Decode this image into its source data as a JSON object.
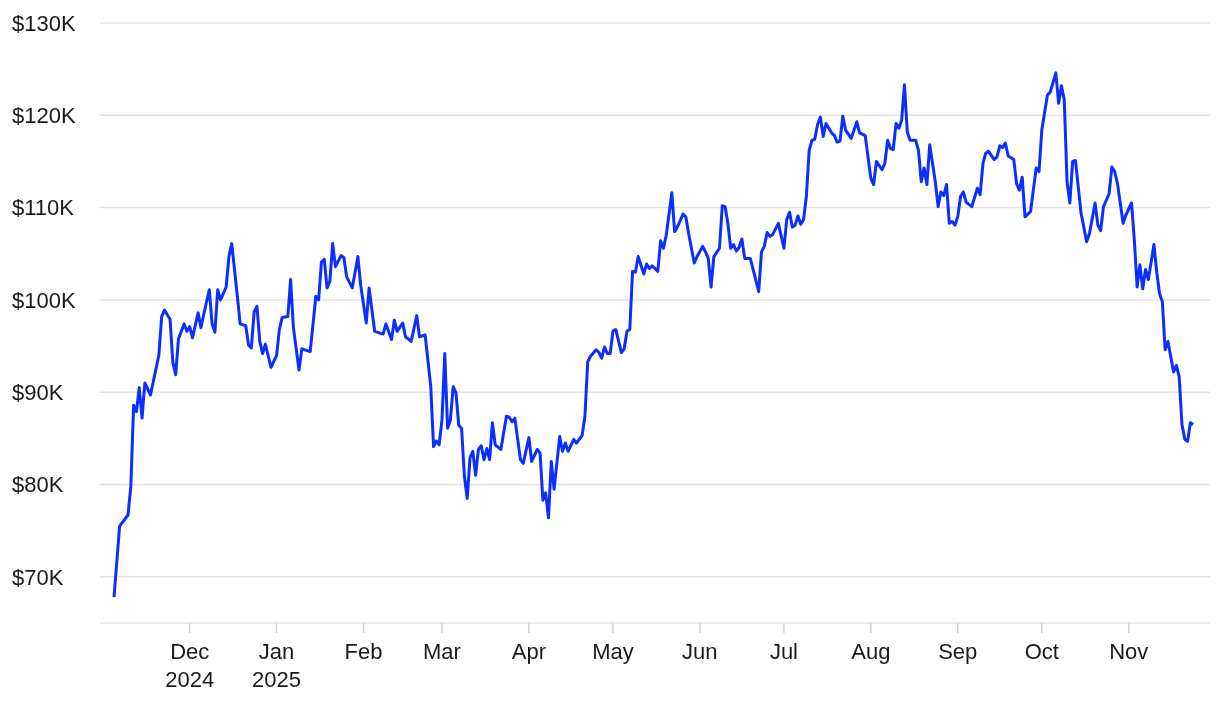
{
  "chart_data": {
    "type": "line",
    "color": "#0a2fff",
    "grid": "y",
    "line_style": "solid",
    "xlim": [
      "2024-10-30",
      "2025-11-30"
    ],
    "xticks": [
      {
        "value": "2024-12-01",
        "label": "Dec\n2024"
      },
      {
        "value": "2025-01-01",
        "label": "Jan\n2025"
      },
      {
        "value": "2025-02-01",
        "label": "Feb"
      },
      {
        "value": "2025-03-01",
        "label": "Mar"
      },
      {
        "value": "2025-04-01",
        "label": "Apr"
      },
      {
        "value": "2025-05-01",
        "label": "May"
      },
      {
        "value": "2025-06-01",
        "label": "Jun"
      },
      {
        "value": "2025-07-01",
        "label": "Jul"
      },
      {
        "value": "2025-08-01",
        "label": "Aug"
      },
      {
        "value": "2025-09-01",
        "label": "Sep"
      },
      {
        "value": "2025-10-01",
        "label": "Oct"
      },
      {
        "value": "2025-11-01",
        "label": "Nov"
      }
    ],
    "ylim": [
      65000,
      130000
    ],
    "yticks": [
      {
        "value": 70000,
        "label": "$70K"
      },
      {
        "value": 80000,
        "label": "$80K"
      },
      {
        "value": 90000,
        "label": "$90K"
      },
      {
        "value": 100000,
        "label": "$100K"
      },
      {
        "value": 110000,
        "label": "$110K"
      },
      {
        "value": 120000,
        "label": "$120K"
      },
      {
        "value": 130000,
        "label": "$130K"
      }
    ],
    "x": [
      "2024-11-04",
      "2024-11-06",
      "2024-11-09",
      "2024-11-10",
      "2024-11-11",
      "2024-11-12",
      "2024-11-13",
      "2024-11-14",
      "2024-11-15",
      "2024-11-17",
      "2024-11-20",
      "2024-11-21",
      "2024-11-22",
      "2024-11-24",
      "2024-11-25",
      "2024-11-26",
      "2024-11-27",
      "2024-11-29",
      "2024-11-30",
      "2024-12-01",
      "2024-12-02",
      "2024-12-04",
      "2024-12-05",
      "2024-12-07",
      "2024-12-08",
      "2024-12-09",
      "2024-12-10",
      "2024-12-11",
      "2024-12-12",
      "2024-12-14",
      "2024-12-15",
      "2024-12-16",
      "2024-12-18",
      "2024-12-19",
      "2024-12-21",
      "2024-12-22",
      "2024-12-23",
      "2024-12-24",
      "2024-12-25",
      "2024-12-26",
      "2024-12-27",
      "2024-12-28",
      "2024-12-30",
      "2025-01-01",
      "2025-01-02",
      "2025-01-03",
      "2025-01-05",
      "2025-01-06",
      "2025-01-07",
      "2025-01-09",
      "2025-01-10",
      "2025-01-13",
      "2025-01-15",
      "2025-01-16",
      "2025-01-17",
      "2025-01-18",
      "2025-01-19",
      "2025-01-20",
      "2025-01-21",
      "2025-01-22",
      "2025-01-24",
      "2025-01-25",
      "2025-01-26",
      "2025-01-28",
      "2025-01-30",
      "2025-01-31",
      "2025-02-02",
      "2025-02-03",
      "2025-02-05",
      "2025-02-08",
      "2025-02-09",
      "2025-02-11",
      "2025-02-12",
      "2025-02-13",
      "2025-02-15",
      "2025-02-16",
      "2025-02-18",
      "2025-02-20",
      "2025-02-21",
      "2025-02-23",
      "2025-02-25",
      "2025-02-26",
      "2025-02-27",
      "2025-02-28",
      "2025-03-01",
      "2025-03-02",
      "2025-03-03",
      "2025-03-04",
      "2025-03-05",
      "2025-03-06",
      "2025-03-07",
      "2025-03-08",
      "2025-03-09",
      "2025-03-10",
      "2025-03-11",
      "2025-03-12",
      "2025-03-13",
      "2025-03-14",
      "2025-03-15",
      "2025-03-16",
      "2025-03-17",
      "2025-03-18",
      "2025-03-19",
      "2025-03-20",
      "2025-03-22",
      "2025-03-24",
      "2025-03-25",
      "2025-03-26",
      "2025-03-27",
      "2025-03-29",
      "2025-03-30",
      "2025-04-01",
      "2025-04-02",
      "2025-04-04",
      "2025-04-05",
      "2025-04-06",
      "2025-04-07",
      "2025-04-08",
      "2025-04-09",
      "2025-04-10",
      "2025-04-12",
      "2025-04-13",
      "2025-04-14",
      "2025-04-15",
      "2025-04-17",
      "2025-04-18",
      "2025-04-20",
      "2025-04-21",
      "2025-04-22",
      "2025-04-23",
      "2025-04-25",
      "2025-04-26",
      "2025-04-27",
      "2025-04-28",
      "2025-04-29",
      "2025-04-30",
      "2025-05-01",
      "2025-05-02",
      "2025-05-04",
      "2025-05-05",
      "2025-05-06",
      "2025-05-07",
      "2025-05-08",
      "2025-05-09",
      "2025-05-10",
      "2025-05-12",
      "2025-05-13",
      "2025-05-14",
      "2025-05-15",
      "2025-05-17",
      "2025-05-18",
      "2025-05-19",
      "2025-05-20",
      "2025-05-22",
      "2025-05-23",
      "2025-05-24",
      "2025-05-26",
      "2025-05-27",
      "2025-05-28",
      "2025-05-30",
      "2025-05-31",
      "2025-06-02",
      "2025-06-03",
      "2025-06-04",
      "2025-06-05",
      "2025-06-06",
      "2025-06-08",
      "2025-06-09",
      "2025-06-10",
      "2025-06-11",
      "2025-06-12",
      "2025-06-13",
      "2025-06-14",
      "2025-06-15",
      "2025-06-16",
      "2025-06-17",
      "2025-06-19",
      "2025-06-20",
      "2025-06-22",
      "2025-06-23",
      "2025-06-24",
      "2025-06-25",
      "2025-06-26",
      "2025-06-27",
      "2025-06-29",
      "2025-07-01",
      "2025-07-02",
      "2025-07-03",
      "2025-07-04",
      "2025-07-05",
      "2025-07-06",
      "2025-07-07",
      "2025-07-08",
      "2025-07-09",
      "2025-07-10",
      "2025-07-11",
      "2025-07-12",
      "2025-07-13",
      "2025-07-14",
      "2025-07-15",
      "2025-07-16",
      "2025-07-18",
      "2025-07-19",
      "2025-07-20",
      "2025-07-21",
      "2025-07-22",
      "2025-07-23",
      "2025-07-25",
      "2025-07-27",
      "2025-07-28",
      "2025-07-30",
      "2025-08-01",
      "2025-08-02",
      "2025-08-03",
      "2025-08-05",
      "2025-08-06",
      "2025-08-07",
      "2025-08-08",
      "2025-08-09",
      "2025-08-10",
      "2025-08-11",
      "2025-08-12",
      "2025-08-13",
      "2025-08-14",
      "2025-08-15",
      "2025-08-17",
      "2025-08-18",
      "2025-08-19",
      "2025-08-20",
      "2025-08-21",
      "2025-08-22",
      "2025-08-23",
      "2025-08-24",
      "2025-08-25",
      "2025-08-26",
      "2025-08-27",
      "2025-08-28",
      "2025-08-29",
      "2025-08-30",
      "2025-08-31",
      "2025-09-01",
      "2025-09-02",
      "2025-09-03",
      "2025-09-04",
      "2025-09-06",
      "2025-09-08",
      "2025-09-09",
      "2025-09-10",
      "2025-09-11",
      "2025-09-12",
      "2025-09-14",
      "2025-09-15",
      "2025-09-16",
      "2025-09-17",
      "2025-09-18",
      "2025-09-19",
      "2025-09-21",
      "2025-09-22",
      "2025-09-23",
      "2025-09-24",
      "2025-09-25",
      "2025-09-27",
      "2025-09-29",
      "2025-09-30",
      "2025-10-01",
      "2025-10-03",
      "2025-10-04",
      "2025-10-06",
      "2025-10-07",
      "2025-10-08",
      "2025-10-09",
      "2025-10-10",
      "2025-10-11",
      "2025-10-12",
      "2025-10-13",
      "2025-10-15",
      "2025-10-17",
      "2025-10-18",
      "2025-10-20",
      "2025-10-21",
      "2025-10-22",
      "2025-10-23",
      "2025-10-25",
      "2025-10-26",
      "2025-10-27",
      "2025-10-28",
      "2025-10-30",
      "2025-10-31",
      "2025-11-02",
      "2025-11-03",
      "2025-11-04",
      "2025-11-05",
      "2025-11-06",
      "2025-11-07",
      "2025-11-08",
      "2025-11-10",
      "2025-11-11",
      "2025-11-12",
      "2025-11-13",
      "2025-11-14",
      "2025-11-15",
      "2025-11-17",
      "2025-11-18",
      "2025-11-19",
      "2025-11-20",
      "2025-11-21",
      "2025-11-22",
      "2025-11-23",
      "2025-11-24"
    ],
    "values": [
      67800,
      75500,
      76700,
      79800,
      88600,
      87900,
      90500,
      87200,
      91000,
      89700,
      94000,
      98200,
      98900,
      97900,
      93200,
      91900,
      95800,
      97400,
      96600,
      97100,
      95900,
      98600,
      97000,
      99800,
      101100,
      97400,
      96500,
      101100,
      100000,
      101400,
      104700,
      106100,
      100400,
      97400,
      97200,
      95100,
      94800,
      98700,
      99300,
      95500,
      94200,
      95200,
      92700,
      94000,
      96800,
      98100,
      98200,
      102200,
      97000,
      92400,
      94700,
      94400,
      100400,
      100000,
      104100,
      104400,
      101300,
      102000,
      106100,
      103600,
      104800,
      104600,
      102500,
      101300,
      104700,
      101600,
      97500,
      101300,
      96600,
      96300,
      97400,
      95700,
      97800,
      96600,
      97500,
      96000,
      95500,
      98300,
      96000,
      96200,
      90600,
      84100,
      84700,
      84300,
      87000,
      94200,
      86100,
      87000,
      90600,
      89900,
      86400,
      86100,
      80900,
      78500,
      82900,
      83600,
      81000,
      83800,
      84200,
      82700,
      83900,
      82700,
      86700,
      84300,
      83800,
      87400,
      87300,
      86800,
      87200,
      82700,
      82300,
      85100,
      82500,
      83800,
      83400,
      78300,
      79100,
      76400,
      82500,
      79500,
      85200,
      83600,
      84500,
      83600,
      84900,
      84500,
      85300,
      87400,
      93300,
      93900,
      94600,
      94300,
      93700,
      94900,
      94200,
      94200,
      96600,
      96800,
      94300,
      94700,
      96600,
      96800,
      103100,
      103000,
      104700,
      102800,
      103900,
      103400,
      103700,
      103100,
      106400,
      105600,
      107000,
      111600,
      107400,
      107900,
      109300,
      109000,
      107200,
      104000,
      104700,
      105800,
      105200,
      104500,
      101400,
      104700,
      105600,
      110200,
      110100,
      108300,
      105600,
      106000,
      105300,
      105700,
      106600,
      104500,
      104500,
      103300,
      100900,
      105200,
      105800,
      107300,
      106900,
      107100,
      108300,
      105600,
      108700,
      109500,
      107900,
      108100,
      109100,
      108200,
      108700,
      111200,
      116200,
      117300,
      117400,
      119000,
      119800,
      117700,
      119100,
      118100,
      117800,
      117100,
      117200,
      119900,
      118400,
      117500,
      119300,
      118100,
      117800,
      113200,
      112500,
      115000,
      114100,
      114800,
      117300,
      116400,
      116300,
      119100,
      118600,
      119500,
      123300,
      118200,
      117300,
      117300,
      116200,
      112800,
      114300,
      112500,
      116800,
      114800,
      112800,
      110100,
      111700,
      111300,
      112500,
      108300,
      108500,
      108100,
      109000,
      111200,
      111700,
      110600,
      110100,
      112100,
      111400,
      114800,
      115900,
      116100,
      115200,
      115500,
      116700,
      116500,
      117000,
      115600,
      115200,
      112600,
      111900,
      113300,
      109000,
      109600,
      114300,
      113900,
      118400,
      122200,
      122500,
      124600,
      121300,
      123200,
      121700,
      112800,
      110500,
      115000,
      115100,
      109400,
      106300,
      107200,
      110500,
      108100,
      107500,
      110100,
      111500,
      114400,
      113900,
      112600,
      108300,
      109200,
      110500,
      106500,
      101400,
      103800,
      101200,
      103300,
      102200,
      106000,
      103000,
      100700,
      99800,
      94600,
      95500,
      92200,
      92900,
      91700,
      86500,
      84900,
      84700,
      86700,
      86500
    ]
  }
}
